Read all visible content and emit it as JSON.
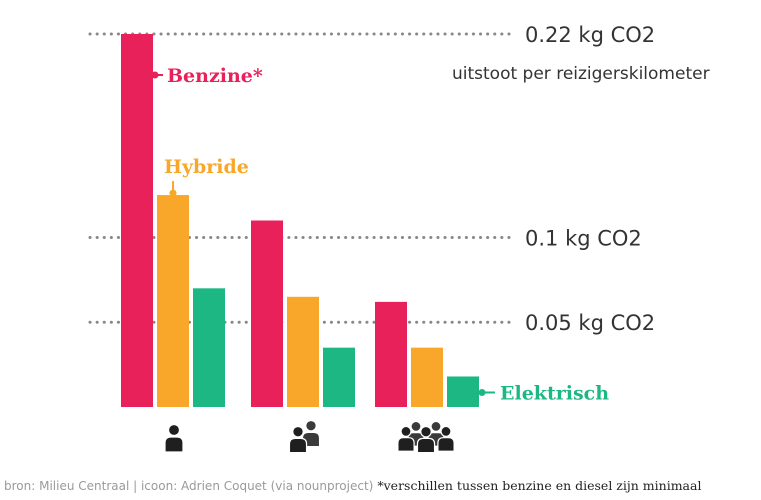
{
  "chart_data": {
    "type": "bar",
    "unit": "kg CO2",
    "subtitle": "uitstoot per reizigerskilometer",
    "categories": [
      "1 reiziger",
      "2 reizigers",
      "4 reizigers"
    ],
    "category_icons": [
      "person-icon",
      "two-people-icon",
      "group-icon"
    ],
    "series": [
      {
        "name": "Benzine*",
        "color": "#e8215a",
        "values": [
          0.22,
          0.11,
          0.062
        ]
      },
      {
        "name": "Hybride",
        "color": "#f9a72b",
        "values": [
          0.125,
          0.065,
          0.035
        ]
      },
      {
        "name": "Elektrisch",
        "color": "#1db784",
        "values": [
          0.07,
          0.035,
          0.018
        ]
      }
    ],
    "reference_lines": [
      {
        "value": 0.22,
        "label": "0.22 kg CO2"
      },
      {
        "value": 0.1,
        "label": "0.1 kg CO2"
      },
      {
        "value": 0.05,
        "label": "0.05 kg CO2"
      }
    ],
    "ylim": [
      0,
      0.22
    ],
    "grid": false
  },
  "footer": {
    "source": "bron: Milieu Centraal | icoon: Adrien Coquet (via nounproject)",
    "note": "*verschillen tussen benzine en diesel zijn minimaal"
  }
}
